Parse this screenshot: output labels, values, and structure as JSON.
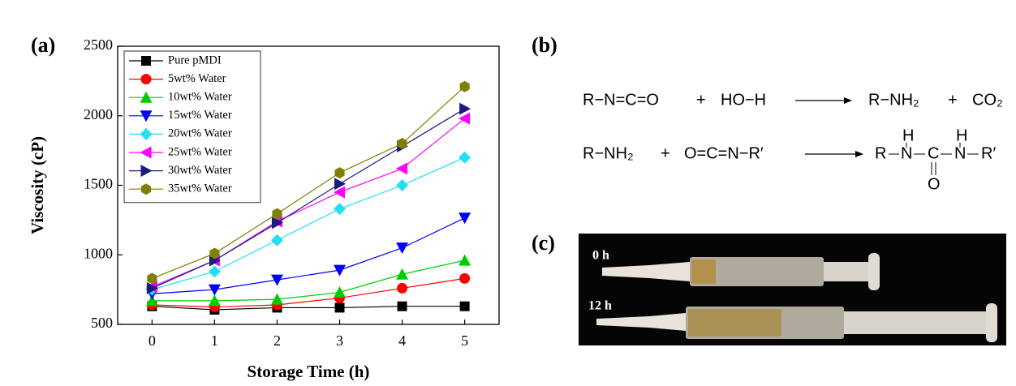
{
  "chart_data": {
    "type": "line",
    "panel_label": "(a)",
    "x_label": "Storage Time (h)",
    "y_label": "Viscosity (cP)",
    "x": [
      0,
      1,
      2,
      3,
      4,
      5
    ],
    "xlim": [
      -0.55,
      5.55
    ],
    "xticks": [
      0,
      1,
      2,
      3,
      4,
      5
    ],
    "ylim": [
      500,
      2500
    ],
    "yticks": [
      500,
      1000,
      1500,
      2000,
      2500
    ],
    "legend": "upper left",
    "series": [
      {
        "name": "Pure pMDI",
        "color": "#000000",
        "marker": "square",
        "values": [
          630,
          605,
          620,
          620,
          630,
          630
        ]
      },
      {
        "name": "5wt% Water",
        "color": "#ff0000",
        "marker": "circle",
        "values": [
          640,
          625,
          640,
          690,
          760,
          830
        ]
      },
      {
        "name": "10wt% Water",
        "color": "#00cc00",
        "marker": "triangle-up",
        "values": [
          670,
          670,
          680,
          730,
          860,
          960
        ]
      },
      {
        "name": "15wt% Water",
        "color": "#0000ff",
        "marker": "triangle-down",
        "values": [
          720,
          750,
          820,
          890,
          1050,
          1265
        ]
      },
      {
        "name": "20wt% Water",
        "color": "#22e0f0",
        "marker": "diamond",
        "values": [
          750,
          880,
          1105,
          1330,
          1500,
          1700
        ]
      },
      {
        "name": "25wt% Water",
        "color": "#ff00ff",
        "marker": "triangle-left",
        "values": [
          770,
          960,
          1240,
          1450,
          1620,
          1980
        ]
      },
      {
        "name": "30wt% Water",
        "color": "#1a1a80",
        "marker": "triangle-right",
        "values": [
          760,
          960,
          1230,
          1510,
          1780,
          2050
        ]
      },
      {
        "name": "35wt% Water",
        "color": "#808000",
        "marker": "hexagon",
        "values": [
          830,
          1010,
          1295,
          1590,
          1800,
          2210
        ]
      }
    ]
  },
  "panel_b": {
    "label": "(b)",
    "reactions": [
      {
        "reactant_1": "R−N=C=O",
        "plus_1": "+",
        "reactant_2": "HO−H",
        "product_1": "R−NH₂",
        "plus_2": "+",
        "product_2": "CO₂"
      },
      {
        "reactant_1": "R−NH₂",
        "plus_1": "+",
        "reactant_2": "O=C=N−R′",
        "product_groups": [
          "R",
          "N",
          "C",
          "N",
          "R′"
        ],
        "product_h": [
          "H",
          "H"
        ],
        "product_o": "O"
      }
    ]
  },
  "panel_c": {
    "label": "(c)",
    "photo_labels": [
      "0 h",
      "12 h"
    ]
  }
}
